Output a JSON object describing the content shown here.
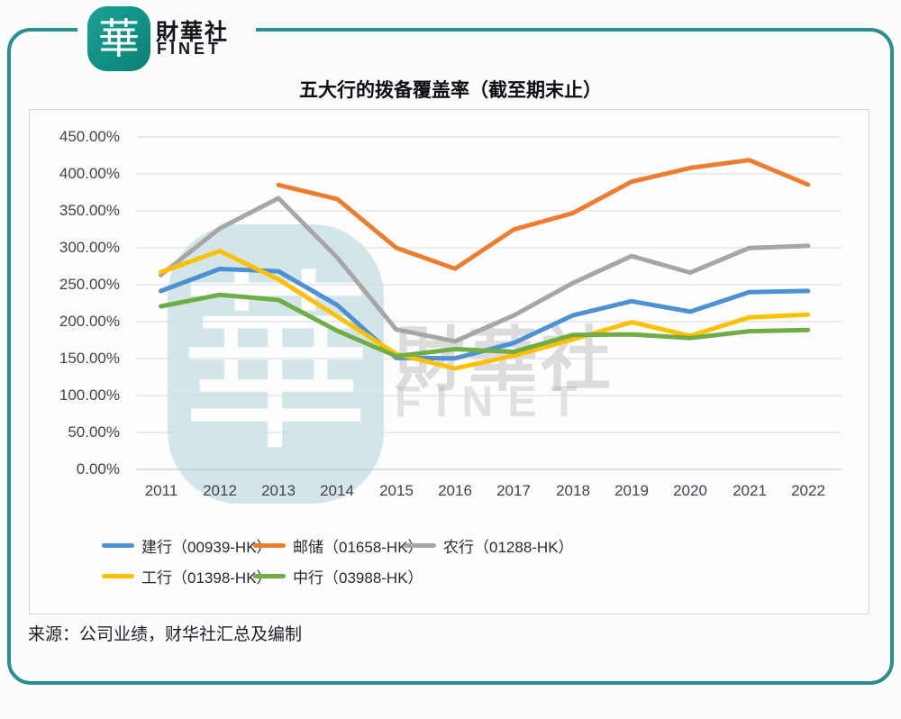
{
  "brand": {
    "logo_char": "華",
    "name_cn": "財華社",
    "name_en": "FINET"
  },
  "title": "五大行的拨备覆盖率（截至期末止）",
  "source": "来源：公司业绩，财华社汇总及编制",
  "watermark": {
    "logo_char": "華",
    "text_cn": "財華社",
    "text_en": "FINET"
  },
  "colors": {
    "frame_teal": "#2a8e8c",
    "logo_teal": "#129084",
    "grid_line": "#d9d9d9",
    "axis_line": "#c2c2c6",
    "axis_text": "#46414d",
    "title_text": "#0c0c14"
  },
  "chart_data": {
    "type": "line",
    "title": "五大行的拨备覆盖率（截至期末止）",
    "categories": [
      "2011",
      "2012",
      "2013",
      "2014",
      "2015",
      "2016",
      "2017",
      "2018",
      "2019",
      "2020",
      "2021",
      "2022"
    ],
    "series": [
      {
        "name": "建行（00939-HK）",
        "color": "#4E91D2",
        "values": [
          241.44,
          271.29,
          268.22,
          222.33,
          150.99,
          150.36,
          171.08,
          208.37,
          227.69,
          213.59,
          239.96,
          241.53
        ]
      },
      {
        "name": "邮储（01658-HK）",
        "color": "#ED7D31",
        "values": [
          null,
          null,
          385.0,
          366.0,
          300.0,
          271.69,
          324.77,
          346.8,
          389.45,
          408.06,
          418.61,
          385.51
        ]
      },
      {
        "name": "农行（01288-HK）",
        "color": "#A6A6A6",
        "values": [
          263.1,
          326.14,
          367.04,
          286.53,
          189.43,
          173.4,
          208.37,
          252.18,
          288.75,
          266.4,
          299.73,
          302.6
        ]
      },
      {
        "name": "工行（01398-HK）",
        "color": "#FFC000",
        "values": [
          266.92,
          295.55,
          257.19,
          206.9,
          156.34,
          136.69,
          154.07,
          175.76,
          199.32,
          180.68,
          205.84,
          209.47
        ]
      },
      {
        "name": "中行（03988-HK）",
        "color": "#70AD47",
        "values": [
          220.75,
          236.3,
          229.35,
          187.6,
          153.3,
          162.82,
          159.18,
          181.97,
          182.86,
          177.84,
          187.05,
          188.73
        ]
      }
    ],
    "ylim": [
      0,
      450
    ],
    "y_tick_step": 50,
    "y_tick_labels": [
      "0.00%",
      "50.00%",
      "100.00%",
      "150.00%",
      "200.00%",
      "250.00%",
      "300.00%",
      "350.00%",
      "400.00%",
      "450.00%"
    ],
    "grid": true,
    "legend_position": "bottom"
  }
}
